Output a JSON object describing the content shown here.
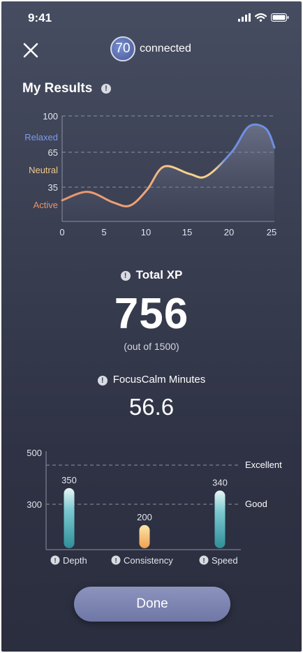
{
  "status": {
    "time": "9:41"
  },
  "header": {
    "connection_count": "70",
    "connection_label": "connected"
  },
  "page": {
    "title": "My Results"
  },
  "results_chart": {
    "ytick_labels": [
      "100",
      "65",
      "35"
    ],
    "state_labels": [
      "Relaxed",
      "Neutral",
      "Active"
    ],
    "xtick_labels": [
      "0",
      "5",
      "10",
      "15",
      "20",
      "25"
    ]
  },
  "xp": {
    "label": "Total XP",
    "value": "756",
    "subtitle": "(out of 1500)"
  },
  "focus": {
    "label": "FocusCalm Minutes",
    "value": "56.6"
  },
  "bar_chart": {
    "ytick_labels": [
      "500",
      "300"
    ],
    "reference_labels": [
      "Excellent",
      "Good"
    ],
    "categories": [
      "Depth",
      "Consistency",
      "Speed"
    ],
    "value_labels": [
      "350",
      "200",
      "340"
    ]
  },
  "done_label": "Done",
  "chart_data": [
    {
      "type": "line",
      "x": [
        0,
        3,
        6,
        8,
        10,
        12,
        15,
        17,
        20,
        22,
        24,
        25
      ],
      "y": [
        20,
        28,
        18,
        15,
        30,
        52,
        45,
        43,
        66,
        90,
        88,
        70
      ],
      "xlim": [
        0,
        25
      ],
      "ylim": [
        0,
        100
      ],
      "yticks": [
        35,
        65,
        100
      ],
      "y_state_labels": [
        "Active",
        "Neutral",
        "Relaxed"
      ],
      "colors": {
        "active": "#e8956a",
        "neutral": "#f5d08a",
        "relaxed": "#6f8fe0"
      },
      "grid": "horizontal dashed"
    },
    {
      "type": "bar",
      "categories": [
        "Depth",
        "Consistency",
        "Speed"
      ],
      "values": [
        350,
        200,
        340
      ],
      "ylim": [
        100,
        500
      ],
      "yticks": [
        300,
        500
      ],
      "reference_lines": [
        {
          "label": "Excellent",
          "value": 460
        },
        {
          "label": "Good",
          "value": 300
        }
      ],
      "colors": {
        "teal": "#3aa0a8",
        "orange": "#f0a855"
      }
    }
  ]
}
